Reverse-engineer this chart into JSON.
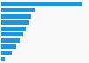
{
  "values": [
    100,
    42,
    38,
    35,
    31,
    28,
    24,
    19,
    13,
    6
  ],
  "bar_color": "#2196d6",
  "background_color": "#f9f9f9",
  "grid_color": "#e0e0e0",
  "xlim": [
    0,
    108
  ],
  "bar_height": 0.72,
  "figsize": [
    1.0,
    0.71
  ],
  "dpi": 100
}
